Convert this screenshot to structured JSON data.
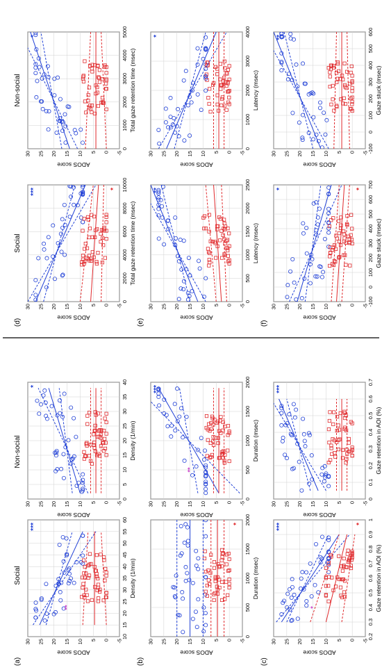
{
  "col_titles": [
    "Social",
    "Non-social",
    "Social",
    "Non-social"
  ],
  "row_labels": [
    "(a)",
    "(b)",
    "(c)",
    "(d)",
    "(e)",
    "(f)"
  ],
  "ylabel": "ADOS score",
  "colors": {
    "blue": "#1f3fd6",
    "red": "#e0282b",
    "magenta": "#cc44cc"
  },
  "chart_data": [
    {
      "panel": "a-social",
      "type": "scatter",
      "xlabel": "Density (1/min)",
      "xlim": [
        10,
        60
      ],
      "ylim": [
        -5,
        30
      ],
      "xticks": [
        10,
        15,
        20,
        25,
        30,
        35,
        40,
        45,
        50,
        55,
        60
      ],
      "yticks": [
        -5,
        0,
        5,
        10,
        15,
        20,
        25,
        30
      ],
      "blue_fit": [
        [
          15,
          25.5
        ],
        [
          55,
          9
        ]
      ],
      "blue_ci_hi": [
        [
          15,
          23
        ],
        [
          55,
          13
        ]
      ],
      "blue_ci_lo": [
        [
          15,
          28
        ],
        [
          55,
          4
        ]
      ],
      "red_fit": [
        [
          15,
          4.5
        ],
        [
          55,
          4.5
        ]
      ],
      "red_ci_hi": [
        [
          15,
          9
        ],
        [
          55,
          7
        ]
      ],
      "red_ci_lo": [
        [
          15,
          0
        ],
        [
          55,
          2
        ]
      ],
      "stars": {
        "blue": "***",
        "magenta": "**"
      }
    },
    {
      "panel": "a-nonsocial",
      "type": "scatter",
      "xlabel": "Density (1/min)",
      "xlim": [
        0,
        40
      ],
      "ylim": [
        -5,
        30
      ],
      "xticks": [
        0,
        5,
        10,
        15,
        20,
        25,
        30,
        35,
        40
      ],
      "yticks": [
        -5,
        0,
        5,
        10,
        15,
        20,
        25,
        30
      ],
      "blue_fit": [
        [
          2,
          10
        ],
        [
          38,
          22
        ]
      ],
      "blue_ci_hi": [
        [
          2,
          7
        ],
        [
          38,
          26
        ]
      ],
      "blue_ci_lo": [
        [
          2,
          13
        ],
        [
          38,
          18
        ]
      ],
      "red_fit": [
        [
          2,
          4
        ],
        [
          38,
          4
        ]
      ],
      "red_ci_hi": [
        [
          2,
          6
        ],
        [
          38,
          6
        ]
      ],
      "red_ci_lo": [
        [
          2,
          2
        ],
        [
          38,
          2
        ]
      ],
      "stars": {
        "blue": "*"
      }
    },
    {
      "panel": "b-social",
      "type": "scatter",
      "xlabel": "Duration (msec)",
      "xlim": [
        0,
        2000
      ],
      "ylim": [
        -5,
        30
      ],
      "xticks": [
        0,
        500,
        1000,
        1500,
        2000
      ],
      "yticks": [
        -5,
        0,
        5,
        10,
        15,
        20,
        25,
        30
      ],
      "blue_fit": [
        [
          0,
          15
        ],
        [
          2000,
          15
        ]
      ],
      "blue_ci_hi": [
        [
          0,
          20
        ],
        [
          2000,
          20
        ]
      ],
      "blue_ci_lo": [
        [
          0,
          10
        ],
        [
          2000,
          10
        ]
      ],
      "red_fit": [
        [
          0,
          4.5
        ],
        [
          2000,
          4.5
        ]
      ],
      "red_ci_hi": [
        [
          0,
          7
        ],
        [
          2000,
          7
        ]
      ],
      "red_ci_lo": [
        [
          0,
          2
        ],
        [
          2000,
          2
        ]
      ],
      "stars": {
        "red": "*"
      }
    },
    {
      "panel": "b-nonsocial",
      "type": "scatter",
      "xlabel": "Duration (msec)",
      "xlim": [
        0,
        2000
      ],
      "ylim": [
        -5,
        30
      ],
      "xticks": [
        0,
        500,
        1000,
        1500,
        2000
      ],
      "yticks": [
        -5,
        0,
        5,
        10,
        15,
        20,
        25,
        30
      ],
      "blue_fit": [
        [
          100,
          4
        ],
        [
          1900,
          27
        ]
      ],
      "blue_ci_hi": [
        [
          100,
          -4
        ],
        [
          1900,
          35
        ]
      ],
      "blue_ci_lo": [
        [
          100,
          12
        ],
        [
          1900,
          19
        ]
      ],
      "red_fit": [
        [
          100,
          4
        ],
        [
          1900,
          4
        ]
      ],
      "red_ci_hi": [
        [
          100,
          6
        ],
        [
          1900,
          6
        ]
      ],
      "red_ci_lo": [
        [
          100,
          2
        ],
        [
          1900,
          2
        ]
      ],
      "stars": {
        "blue": "***",
        "magenta": "**"
      }
    },
    {
      "panel": "c-social",
      "type": "scatter",
      "xlabel": "Gaze retention in AOI (%)",
      "xlim": [
        0.2,
        1.0
      ],
      "ylim": [
        -5,
        30
      ],
      "xticks": [
        0.2,
        0.3,
        0.4,
        0.5,
        0.6,
        0.7,
        0.8,
        0.9,
        1.0
      ],
      "yticks": [
        -5,
        0,
        5,
        10,
        15,
        20,
        25,
        30
      ],
      "blue_fit": [
        [
          0.3,
          27
        ],
        [
          0.9,
          5
        ]
      ],
      "blue_ci_hi": [
        [
          0.3,
          25
        ],
        [
          0.9,
          9
        ]
      ],
      "blue_ci_lo": [
        [
          0.3,
          29
        ],
        [
          0.9,
          1
        ]
      ],
      "red_fit": [
        [
          0.3,
          10
        ],
        [
          0.9,
          2
        ]
      ],
      "red_ci_hi": [
        [
          0.3,
          16
        ],
        [
          0.9,
          5
        ]
      ],
      "red_ci_lo": [
        [
          0.3,
          4
        ],
        [
          0.9,
          -1
        ]
      ],
      "stars": {
        "blue": "***",
        "red": "*",
        "magenta": "*"
      }
    },
    {
      "panel": "c-nonsocial",
      "type": "scatter",
      "xlabel": "Gaze retention in AOI (%)",
      "xlim": [
        0,
        0.7
      ],
      "ylim": [
        -5,
        30
      ],
      "xticks": [
        0,
        0.1,
        0.2,
        0.3,
        0.4,
        0.5,
        0.6,
        0.7
      ],
      "yticks": [
        -5,
        0,
        5,
        10,
        15,
        20,
        25,
        30
      ],
      "blue_fit": [
        [
          0.05,
          13
        ],
        [
          0.6,
          28
        ]
      ],
      "blue_ci_hi": [
        [
          0.05,
          10
        ],
        [
          0.6,
          31
        ]
      ],
      "blue_ci_lo": [
        [
          0.05,
          16
        ],
        [
          0.6,
          25
        ]
      ],
      "red_fit": [
        [
          0.05,
          4
        ],
        [
          0.6,
          4
        ]
      ],
      "red_ci_hi": [
        [
          0.05,
          6
        ],
        [
          0.6,
          6
        ]
      ],
      "red_ci_lo": [
        [
          0.05,
          2
        ],
        [
          0.6,
          2
        ]
      ],
      "stars": {
        "blue": "***"
      }
    },
    {
      "panel": "d-social",
      "type": "scatter",
      "xlabel": "Total gaze retention time (msec)",
      "xlim": [
        0,
        10000
      ],
      "ylim": [
        -5,
        30
      ],
      "xticks": [
        0,
        2000,
        4000,
        6000,
        8000,
        10000
      ],
      "yticks": [
        -5,
        0,
        5,
        10,
        15,
        20,
        25,
        30
      ],
      "blue_fit": [
        [
          0,
          27
        ],
        [
          10000,
          8
        ]
      ],
      "blue_ci_hi": [
        [
          0,
          24
        ],
        [
          10000,
          12
        ]
      ],
      "blue_ci_lo": [
        [
          0,
          30
        ],
        [
          10000,
          4
        ]
      ],
      "red_fit": [
        [
          0,
          6
        ],
        [
          10000,
          3
        ]
      ],
      "red_ci_hi": [
        [
          0,
          10
        ],
        [
          10000,
          5
        ]
      ],
      "red_ci_lo": [
        [
          0,
          2
        ],
        [
          10000,
          1
        ]
      ],
      "stars": {
        "blue": "***",
        "red": "*"
      }
    },
    {
      "panel": "d-nonsocial",
      "type": "scatter",
      "xlabel": "Total gaze retention time (msec)",
      "xlim": [
        0,
        5000
      ],
      "ylim": [
        -5,
        30
      ],
      "xticks": [
        0,
        1000,
        2000,
        3000,
        4000,
        5000
      ],
      "yticks": [
        -5,
        0,
        5,
        10,
        15,
        20,
        25,
        30
      ],
      "blue_fit": [
        [
          0,
          14
        ],
        [
          5000,
          29
        ]
      ],
      "blue_ci_hi": [
        [
          0,
          11
        ],
        [
          5000,
          33
        ]
      ],
      "blue_ci_lo": [
        [
          0,
          17
        ],
        [
          5000,
          25
        ]
      ],
      "red_fit": [
        [
          0,
          4
        ],
        [
          5000,
          4
        ]
      ],
      "red_ci_hi": [
        [
          0,
          8
        ],
        [
          5000,
          6
        ]
      ],
      "red_ci_lo": [
        [
          0,
          0
        ],
        [
          5000,
          2
        ]
      ],
      "stars": {
        "blue": "*"
      }
    },
    {
      "panel": "e-social",
      "type": "scatter",
      "xlabel": "Latency (msec)",
      "xlim": [
        0,
        2500
      ],
      "ylim": [
        -5,
        30
      ],
      "xticks": [
        0,
        500,
        1000,
        1500,
        2000,
        2500
      ],
      "yticks": [
        -5,
        0,
        5,
        10,
        15,
        20,
        25,
        30
      ],
      "blue_fit": [
        [
          0,
          12
        ],
        [
          2500,
          30
        ]
      ],
      "blue_ci_hi": [
        [
          0,
          9
        ],
        [
          2500,
          34
        ]
      ],
      "blue_ci_lo": [
        [
          0,
          15
        ],
        [
          2500,
          26
        ]
      ],
      "red_fit": [
        [
          0,
          3
        ],
        [
          2500,
          6
        ]
      ],
      "red_ci_hi": [
        [
          0,
          5
        ],
        [
          2500,
          9
        ]
      ],
      "red_ci_lo": [
        [
          0,
          1
        ],
        [
          2500,
          3
        ]
      ],
      "stars": {
        "blue": "**"
      }
    },
    {
      "panel": "e-nonsocial",
      "type": "scatter",
      "xlabel": "Latency (msec)",
      "xlim": [
        0,
        4000
      ],
      "ylim": [
        -5,
        30
      ],
      "xticks": [
        0,
        1000,
        2000,
        3000,
        4000
      ],
      "yticks": [
        -5,
        0,
        5,
        10,
        15,
        20,
        25,
        30
      ],
      "blue_fit": [
        [
          0,
          24
        ],
        [
          4000,
          5
        ]
      ],
      "blue_ci_hi": [
        [
          0,
          21
        ],
        [
          4000,
          9
        ]
      ],
      "blue_ci_lo": [
        [
          0,
          27
        ],
        [
          4000,
          1
        ]
      ],
      "red_fit": [
        [
          0,
          4
        ],
        [
          4000,
          4
        ]
      ],
      "red_ci_hi": [
        [
          0,
          6
        ],
        [
          4000,
          6
        ]
      ],
      "red_ci_lo": [
        [
          0,
          2
        ],
        [
          4000,
          2
        ]
      ],
      "stars": {
        "blue": "*"
      }
    },
    {
      "panel": "f-social",
      "type": "scatter",
      "xlabel": "Gaze stuck (msec)",
      "xlim": [
        -100,
        700
      ],
      "ylim": [
        -5,
        30
      ],
      "xticks": [
        -100,
        0,
        100,
        200,
        300,
        400,
        500,
        600,
        700
      ],
      "yticks": [
        -5,
        0,
        5,
        10,
        15,
        20,
        25,
        30
      ],
      "blue_fit": [
        [
          -100,
          21
        ],
        [
          700,
          8
        ]
      ],
      "blue_ci_hi": [
        [
          -100,
          18
        ],
        [
          700,
          12
        ]
      ],
      "blue_ci_lo": [
        [
          -100,
          24
        ],
        [
          700,
          4
        ]
      ],
      "red_fit": [
        [
          -100,
          6
        ],
        [
          700,
          3
        ]
      ],
      "red_ci_hi": [
        [
          -100,
          8
        ],
        [
          700,
          5
        ]
      ],
      "red_ci_lo": [
        [
          -100,
          4
        ],
        [
          700,
          1
        ]
      ],
      "stars": {
        "blue": "*",
        "red": "*"
      }
    },
    {
      "panel": "f-nonsocial",
      "type": "scatter",
      "xlabel": "Gaze stuck (msec)",
      "xlim": [
        -100,
        600
      ],
      "ylim": [
        -5,
        30
      ],
      "xticks": [
        -100,
        0,
        100,
        200,
        300,
        400,
        500,
        600
      ],
      "yticks": [
        -5,
        0,
        5,
        10,
        15,
        20,
        25,
        30
      ],
      "blue_fit": [
        [
          -100,
          12
        ],
        [
          600,
          30
        ]
      ],
      "blue_ci_hi": [
        [
          -100,
          9
        ],
        [
          600,
          34
        ]
      ],
      "blue_ci_lo": [
        [
          -100,
          15
        ],
        [
          600,
          26
        ]
      ],
      "red_fit": [
        [
          -100,
          4
        ],
        [
          600,
          4
        ]
      ],
      "red_ci_hi": [
        [
          -100,
          7
        ],
        [
          600,
          6
        ]
      ],
      "red_ci_lo": [
        [
          -100,
          1
        ],
        [
          600,
          2
        ]
      ],
      "stars": {
        "blue": "**"
      }
    }
  ]
}
